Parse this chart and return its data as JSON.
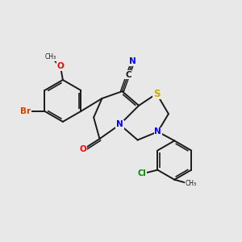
{
  "bg_color": "#e8e8e8",
  "bond_color": "#1a1a1a",
  "bond_width": 1.4,
  "atom_colors": {
    "Br": "#cc4400",
    "O": "#ff0000",
    "N": "#0000ff",
    "S": "#ccaa00",
    "Cl": "#008800",
    "C": "#1a1a1a"
  }
}
